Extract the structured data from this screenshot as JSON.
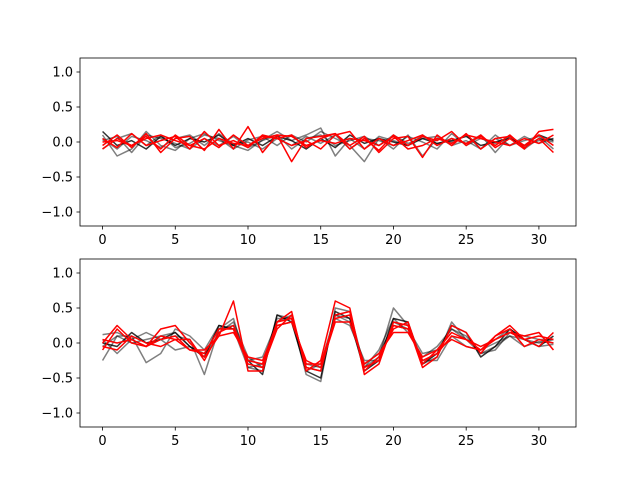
{
  "chart_data": [
    {
      "type": "line",
      "title": "",
      "xlabel": "",
      "ylabel": "",
      "xlim": [
        -1.55,
        32.55
      ],
      "ylim": [
        -1.2,
        1.2
      ],
      "xticks": [
        0,
        5,
        10,
        15,
        20,
        25,
        30
      ],
      "yticks": [
        -1.0,
        -0.5,
        0.0,
        0.5,
        1.0
      ],
      "xtick_labels": [
        "0",
        "5",
        "10",
        "15",
        "20",
        "25",
        "30"
      ],
      "ytick_labels": [
        "−1.0",
        "−0.5",
        "0.0",
        "0.5",
        "1.0"
      ],
      "grid": false,
      "x": [
        0,
        1,
        2,
        3,
        4,
        5,
        6,
        7,
        8,
        9,
        10,
        11,
        12,
        13,
        14,
        15,
        16,
        17,
        18,
        19,
        20,
        21,
        22,
        23,
        24,
        25,
        26,
        27,
        28,
        29,
        30,
        31
      ],
      "series": [
        {
          "color": "#000000",
          "opacity": 0.5,
          "values": [
            0.1,
            -0.2,
            -0.1,
            0.15,
            -0.05,
            -0.12,
            0.05,
            0.12,
            0.02,
            -0.05,
            -0.12,
            0.03,
            0.15,
            0.02,
            0.1,
            0.2,
            -0.2,
            0.05,
            -0.1,
            0.08,
            0.02,
            -0.05,
            0.1,
            -0.03,
            0.05,
            -0.02,
            0.1,
            -0.15,
            0.08,
            -0.05,
            0.02,
            0.05
          ]
        },
        {
          "color": "#000000",
          "opacity": 0.5,
          "values": [
            -0.1,
            0.05,
            0.12,
            -0.05,
            0.1,
            -0.08,
            -0.02,
            0.1,
            0.05,
            -0.1,
            0.03,
            0.08,
            -0.05,
            0.1,
            0.0,
            0.15,
            0.05,
            -0.05,
            -0.28,
            0.05,
            -0.1,
            0.1,
            -0.2,
            0.05,
            0.0,
            0.1,
            -0.1,
            0.05,
            -0.05,
            0.02,
            0.08,
            -0.1
          ]
        },
        {
          "color": "#000000",
          "opacity": 0.5,
          "values": [
            0.05,
            -0.1,
            0.08,
            0.02,
            -0.08,
            0.05,
            0.1,
            -0.05,
            0.12,
            -0.03,
            0.0,
            -0.1,
            0.05,
            -0.05,
            0.08,
            -0.02,
            0.1,
            -0.1,
            0.05,
            0.02,
            -0.05,
            0.08,
            0.0,
            -0.1,
            0.12,
            -0.05,
            0.05,
            -0.02,
            0.08,
            -0.1,
            0.05,
            0.0
          ]
        },
        {
          "color": "#000000",
          "opacity": 0.5,
          "values": [
            0.02,
            0.08,
            -0.15,
            0.1,
            0.05,
            -0.02,
            -0.1,
            0.05,
            -0.05,
            0.08,
            -0.08,
            0.02,
            0.1,
            -0.1,
            0.05,
            0.1,
            -0.05,
            0.02,
            0.08,
            -0.05,
            0.1,
            -0.02,
            0.05,
            0.08,
            -0.05,
            0.02,
            -0.1,
            0.1,
            -0.05,
            0.08,
            -0.02,
            0.05
          ]
        },
        {
          "color": "#000000",
          "opacity": 0.8,
          "values": [
            0.15,
            -0.05,
            0.02,
            -0.1,
            0.08,
            -0.05,
            0.05,
            0.0,
            0.1,
            -0.05,
            0.05,
            -0.05,
            0.08,
            0.02,
            -0.1,
            0.05,
            -0.08,
            0.1,
            -0.02,
            0.05,
            0.0,
            -0.05,
            0.05,
            -0.02,
            0.02,
            0.08,
            -0.05,
            0.0,
            0.05,
            -0.05,
            0.1,
            0.02
          ]
        },
        {
          "color": "#ff0000",
          "opacity": 1,
          "values": [
            -0.05,
            0.1,
            -0.08,
            0.12,
            -0.15,
            0.05,
            0.08,
            -0.12,
            0.18,
            -0.1,
            0.22,
            -0.15,
            0.1,
            -0.28,
            0.05,
            0.08,
            0.12,
            -0.1,
            0.05,
            -0.12,
            0.1,
            -0.05,
            0.08,
            0.02,
            0.15,
            -0.05,
            0.1,
            -0.08,
            0.05,
            -0.1,
            0.15,
            0.18
          ]
        },
        {
          "color": "#ff0000",
          "opacity": 1,
          "values": [
            -0.1,
            0.05,
            -0.05,
            0.08,
            -0.1,
            0.1,
            -0.05,
            0.05,
            -0.08,
            0.1,
            -0.05,
            0.08,
            0.05,
            0.1,
            -0.08,
            0.05,
            0.12,
            -0.05,
            0.08,
            -0.15,
            0.05,
            0.08,
            -0.22,
            0.1,
            -0.05,
            0.12,
            -0.1,
            0.05,
            0.08,
            -0.05,
            0.1,
            -0.05
          ]
        },
        {
          "color": "#ff0000",
          "opacity": 1,
          "values": [
            0.05,
            -0.08,
            0.12,
            -0.05,
            0.02,
            0.08,
            -0.1,
            0.15,
            -0.05,
            0.02,
            -0.08,
            0.1,
            0.05,
            -0.05,
            0.02,
            -0.1,
            0.1,
            0.15,
            -0.1,
            0.05,
            -0.05,
            0.02,
            0.1,
            -0.05,
            0.05,
            -0.02,
            0.08,
            -0.05,
            0.1,
            -0.08,
            0.05,
            -0.15
          ]
        },
        {
          "color": "#ff0000",
          "opacity": 1,
          "values": [
            0.0,
            0.02,
            -0.05,
            0.05,
            0.1,
            0.02,
            -0.05,
            -0.1,
            0.05,
            -0.02,
            -0.05,
            0.05,
            0.1,
            0.08,
            -0.05,
            0.02,
            -0.02,
            0.05,
            0.02,
            -0.05,
            0.08,
            -0.1,
            -0.05,
            0.05,
            -0.02,
            0.1,
            0.05,
            0.0,
            -0.05,
            0.05,
            -0.02,
            0.1
          ]
        }
      ]
    },
    {
      "type": "line",
      "title": "",
      "xlabel": "",
      "ylabel": "",
      "xlim": [
        -1.55,
        32.55
      ],
      "ylim": [
        -1.2,
        1.2
      ],
      "xticks": [
        0,
        5,
        10,
        15,
        20,
        25,
        30
      ],
      "yticks": [
        -1.0,
        -0.5,
        0.0,
        0.5,
        1.0
      ],
      "xtick_labels": [
        "0",
        "5",
        "10",
        "15",
        "20",
        "25",
        "30"
      ],
      "ytick_labels": [
        "−1.0",
        "−0.5",
        "0.0",
        "0.5",
        "1.0"
      ],
      "grid": false,
      "x": [
        0,
        1,
        2,
        3,
        4,
        5,
        6,
        7,
        8,
        9,
        10,
        11,
        12,
        13,
        14,
        15,
        16,
        17,
        18,
        19,
        20,
        21,
        22,
        23,
        24,
        25,
        26,
        27,
        28,
        29,
        30,
        31
      ],
      "series": [
        {
          "color": "#000000",
          "opacity": 0.5,
          "values": [
            0.12,
            0.15,
            0.05,
            0.15,
            0.05,
            0.1,
            0.05,
            -0.45,
            0.2,
            0.35,
            -0.35,
            -0.4,
            0.4,
            0.35,
            -0.45,
            -0.55,
            0.5,
            0.45,
            -0.35,
            -0.2,
            0.5,
            0.25,
            -0.3,
            -0.2,
            0.3,
            0.05,
            -0.15,
            -0.1,
            0.15,
            0.1,
            0.05,
            0.05
          ]
        },
        {
          "color": "#000000",
          "opacity": 0.5,
          "values": [
            -0.25,
            0.1,
            0.1,
            -0.28,
            -0.15,
            0.2,
            0.1,
            -0.1,
            0.25,
            0.2,
            -0.35,
            -0.3,
            0.35,
            0.35,
            -0.4,
            -0.3,
            0.4,
            0.35,
            -0.3,
            -0.15,
            0.25,
            0.2,
            -0.25,
            -0.25,
            0.1,
            -0.05,
            -0.1,
            0.0,
            0.1,
            -0.05,
            0.02,
            0.0
          ]
        },
        {
          "color": "#000000",
          "opacity": 0.5,
          "values": [
            0.05,
            -0.15,
            0.05,
            -0.05,
            0.05,
            -0.1,
            -0.05,
            -0.15,
            0.2,
            0.25,
            -0.25,
            -0.2,
            0.3,
            0.4,
            -0.35,
            -0.4,
            0.4,
            0.3,
            -0.35,
            -0.1,
            0.35,
            0.15,
            -0.2,
            -0.05,
            0.2,
            0.05,
            -0.05,
            0.05,
            0.2,
            0.05,
            -0.05,
            -0.02
          ]
        },
        {
          "color": "#000000",
          "opacity": 0.5,
          "values": [
            -0.05,
            0.1,
            0.0,
            0.05,
            0.1,
            0.15,
            -0.05,
            -0.2,
            0.15,
            0.3,
            -0.2,
            -0.35,
            0.25,
            0.3,
            -0.3,
            -0.35,
            0.35,
            0.25,
            -0.25,
            -0.25,
            0.3,
            0.2,
            -0.15,
            -0.1,
            0.2,
            0.1,
            -0.15,
            -0.05,
            0.1,
            0.05,
            0.0,
            0.05
          ]
        },
        {
          "color": "#000000",
          "opacity": 0.8,
          "values": [
            0.0,
            -0.05,
            0.15,
            0.0,
            0.05,
            0.15,
            -0.05,
            -0.2,
            0.25,
            0.2,
            -0.25,
            -0.45,
            0.4,
            0.3,
            -0.4,
            -0.5,
            0.45,
            0.35,
            -0.4,
            -0.25,
            0.35,
            0.3,
            -0.3,
            -0.15,
            0.25,
            0.15,
            -0.2,
            -0.05,
            0.2,
            0.05,
            -0.05,
            0.1
          ]
        },
        {
          "color": "#ff0000",
          "opacity": 1,
          "values": [
            0.05,
            0.0,
            0.05,
            -0.05,
            0.2,
            0.25,
            0.0,
            -0.2,
            0.1,
            0.6,
            -0.4,
            -0.4,
            0.3,
            0.45,
            -0.4,
            -0.25,
            0.6,
            0.5,
            -0.45,
            -0.3,
            0.3,
            0.25,
            -0.35,
            -0.2,
            0.25,
            0.15,
            -0.15,
            0.1,
            0.25,
            0.05,
            0.1,
            0.05
          ]
        },
        {
          "color": "#ff0000",
          "opacity": 1,
          "values": [
            -0.1,
            0.2,
            0.0,
            -0.05,
            0.05,
            0.1,
            -0.1,
            -0.15,
            0.2,
            0.2,
            -0.3,
            -0.35,
            0.2,
            0.4,
            -0.35,
            -0.4,
            0.4,
            0.45,
            -0.4,
            -0.2,
            0.2,
            0.3,
            -0.3,
            -0.1,
            0.15,
            0.05,
            -0.1,
            0.05,
            0.15,
            0.1,
            0.15,
            -0.1
          ]
        },
        {
          "color": "#ff0000",
          "opacity": 1,
          "values": [
            0.0,
            0.25,
            0.05,
            -0.05,
            0.1,
            0.05,
            0.05,
            -0.25,
            0.15,
            0.25,
            -0.25,
            -0.3,
            0.3,
            0.35,
            -0.3,
            -0.3,
            0.35,
            0.4,
            -0.35,
            -0.25,
            0.25,
            0.2,
            -0.25,
            -0.15,
            0.1,
            0.05,
            -0.05,
            0.05,
            0.15,
            0.05,
            -0.05,
            0.15
          ]
        },
        {
          "color": "#ff0000",
          "opacity": 1,
          "values": [
            -0.05,
            -0.1,
            0.1,
            0.0,
            -0.05,
            0.05,
            -0.1,
            -0.1,
            0.1,
            0.15,
            -0.2,
            -0.25,
            0.25,
            0.3,
            -0.25,
            -0.35,
            0.3,
            0.3,
            -0.3,
            -0.15,
            0.15,
            0.15,
            -0.2,
            -0.1,
            0.05,
            -0.05,
            -0.1,
            0.1,
            0.2,
            -0.05,
            0.05,
            0.0
          ]
        }
      ]
    }
  ]
}
